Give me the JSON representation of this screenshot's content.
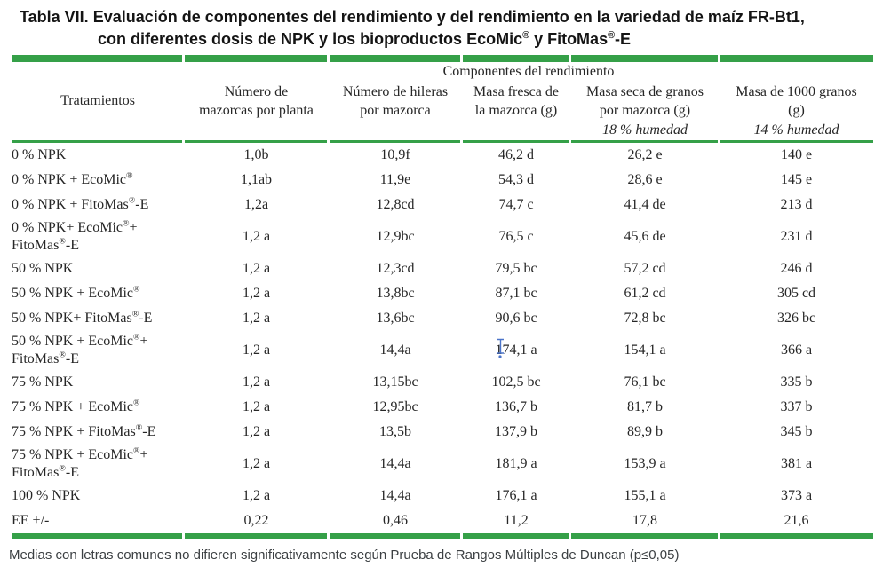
{
  "title": {
    "line1": "Tabla VII. Evaluación de componentes del rendimiento y del rendimiento en la variedad de maíz FR-Bt1,",
    "line2": "con diferentes dosis de NPK y los bioproductos EcoMic® y FitoMas®-E"
  },
  "table": {
    "span_header": "Componentes del rendimiento",
    "col1_header": "Tratamientos",
    "columns": [
      {
        "label": "Número de\nmazorcas por planta",
        "sub": ""
      },
      {
        "label": "Número de hileras\npor mazorca",
        "sub": ""
      },
      {
        "label": "Masa fresca de\nla mazorca (g)",
        "sub": ""
      },
      {
        "label": "Masa seca de granos\npor mazorca (g)",
        "sub": "18 % humedad"
      },
      {
        "label": "Masa de 1000 granos\n(g)",
        "sub": "14 % humedad"
      }
    ],
    "rows": [
      {
        "treatment": "0 % NPK",
        "values": [
          "1,0b",
          "10,9f",
          "46,2 d",
          "26,2 e",
          "140 e"
        ]
      },
      {
        "treatment": "0 % NPK + EcoMic®",
        "values": [
          "1,1ab",
          "11,9e",
          "54,3 d",
          "28,6 e",
          "145 e"
        ]
      },
      {
        "treatment": "0 % NPK + FitoMas®-E",
        "values": [
          "1,2a",
          "12,8cd",
          "74,7 c",
          "41,4 de",
          "213 d"
        ]
      },
      {
        "treatment": "0 % NPK+ EcoMic®+\nFitoMas®-E",
        "values": [
          "1,2 a",
          "12,9bc",
          "76,5 c",
          "45,6 de",
          "231 d"
        ]
      },
      {
        "treatment": "50 % NPK",
        "values": [
          "1,2 a",
          "12,3cd",
          "79,5 bc",
          "57,2 cd",
          "246 d"
        ]
      },
      {
        "treatment": "50 % NPK + EcoMic®",
        "values": [
          "1,2 a",
          "13,8bc",
          "87,1 bc",
          "61,2 cd",
          "305 cd"
        ]
      },
      {
        "treatment": "50 % NPK+ FitoMas®-E",
        "values": [
          "1,2 a",
          "13,6bc",
          "90,6 bc",
          "72,8 bc",
          "326 bc"
        ]
      },
      {
        "treatment": "50 % NPK + EcoMic®+\nFitoMas®-E",
        "values": [
          "1,2 a",
          "14,4a",
          "174,1 a",
          "154,1 a",
          "366 a"
        ]
      },
      {
        "treatment": "75 % NPK",
        "values": [
          "1,2 a",
          "13,15bc",
          "102,5 bc",
          "76,1 bc",
          "335 b"
        ]
      },
      {
        "treatment": "75 % NPK + EcoMic®",
        "values": [
          "1,2 a",
          "12,95bc",
          "136,7 b",
          "81,7 b",
          "337 b"
        ]
      },
      {
        "treatment": "75 % NPK + FitoMas®-E",
        "values": [
          "1,2 a",
          "13,5b",
          "137,9 b",
          "89,9 b",
          "345 b"
        ]
      },
      {
        "treatment": "75 % NPK + EcoMic®+\nFitoMas®-E",
        "values": [
          "1,2 a",
          "14,4a",
          "181,9 a",
          "153,9 a",
          "381 a"
        ]
      },
      {
        "treatment": "100 % NPK",
        "values": [
          "1,2 a",
          "14,4a",
          "176,1 a",
          "155,1 a",
          "373 a"
        ]
      },
      {
        "treatment": "EE +/-",
        "values": [
          "0,22",
          "0,46",
          "11,2",
          "17,8",
          "21,6"
        ]
      }
    ]
  },
  "footer": {
    "note": "Medias con letras comunes no difieren significativamente según Prueba de Rangos Múltiples de Duncan (p≤0,05)"
  },
  "colors": {
    "accent_green": "#35a048",
    "cursor_blue": "#4b74c9"
  }
}
